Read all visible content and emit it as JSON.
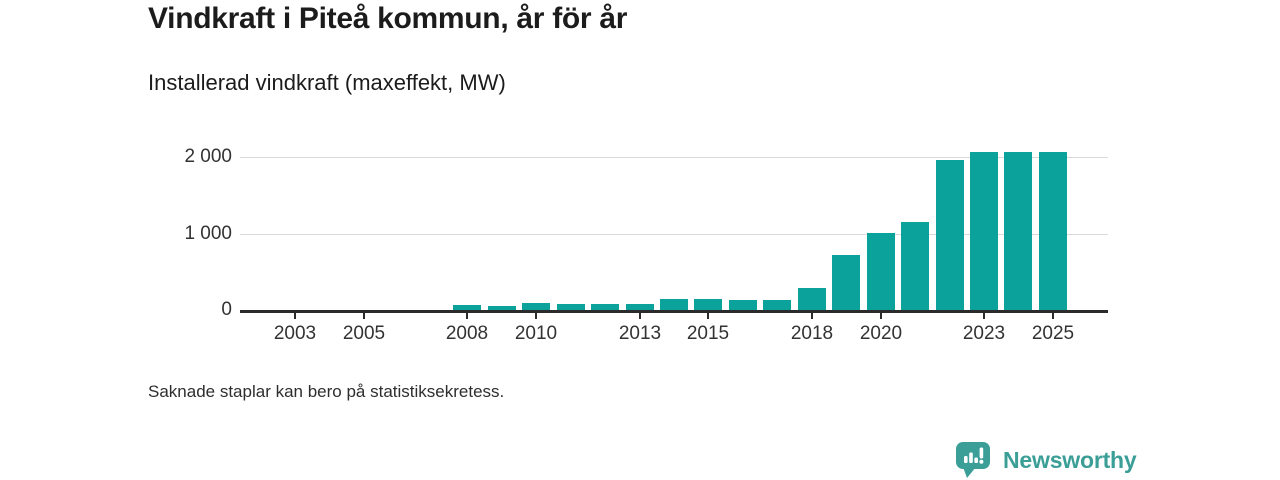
{
  "header": {
    "title": "Vindkraft i Piteå kommun, år för år",
    "subtitle": "Installerad vindkraft (maxeffekt, MW)"
  },
  "footer": {
    "note": "Saknade staplar kan bero på statistiksekretess.",
    "brand": "Newsworthy"
  },
  "colors": {
    "bar": "#0aa29a",
    "brand_teal": "#3b9e97",
    "gridline": "#d9d9d9",
    "axis": "#2b2b2b"
  },
  "chart_data": {
    "type": "bar",
    "title": "Vindkraft i Piteå kommun, år för år",
    "subtitle": "Installerad vindkraft (maxeffekt, MW)",
    "xlabel": "",
    "ylabel": "Installerad vindkraft (maxeffekt, MW)",
    "x": [
      2002,
      2003,
      2004,
      2005,
      2006,
      2007,
      2008,
      2009,
      2010,
      2011,
      2012,
      2013,
      2014,
      2015,
      2016,
      2017,
      2018,
      2019,
      2020,
      2021,
      2022,
      2023,
      2024,
      2025
    ],
    "values": [
      null,
      null,
      null,
      null,
      null,
      null,
      65,
      50,
      90,
      75,
      78,
      75,
      140,
      140,
      130,
      130,
      290,
      715,
      1005,
      1145,
      1960,
      2070,
      2070,
      2070
    ],
    "missing_note": "Saknade staplar kan bero på statistiksekretess.",
    "x_ticks": [
      {
        "year": 2003,
        "label": "2003"
      },
      {
        "year": 2005,
        "label": "2005"
      },
      {
        "year": 2008,
        "label": "2008"
      },
      {
        "year": 2010,
        "label": "2010"
      },
      {
        "year": 2013,
        "label": "2013"
      },
      {
        "year": 2015,
        "label": "2015"
      },
      {
        "year": 2018,
        "label": "2018"
      },
      {
        "year": 2020,
        "label": "2020"
      },
      {
        "year": 2023,
        "label": "2023"
      },
      {
        "year": 2025,
        "label": "2025"
      }
    ],
    "y_ticks": [
      {
        "value": 0,
        "label": "0"
      },
      {
        "value": 1000,
        "label": "1 000"
      },
      {
        "value": 2000,
        "label": "2 000"
      }
    ],
    "ylim": [
      0,
      2250
    ],
    "xlim": [
      2001.4,
      2026.6
    ],
    "grid": "horizontal",
    "legend": "none"
  }
}
